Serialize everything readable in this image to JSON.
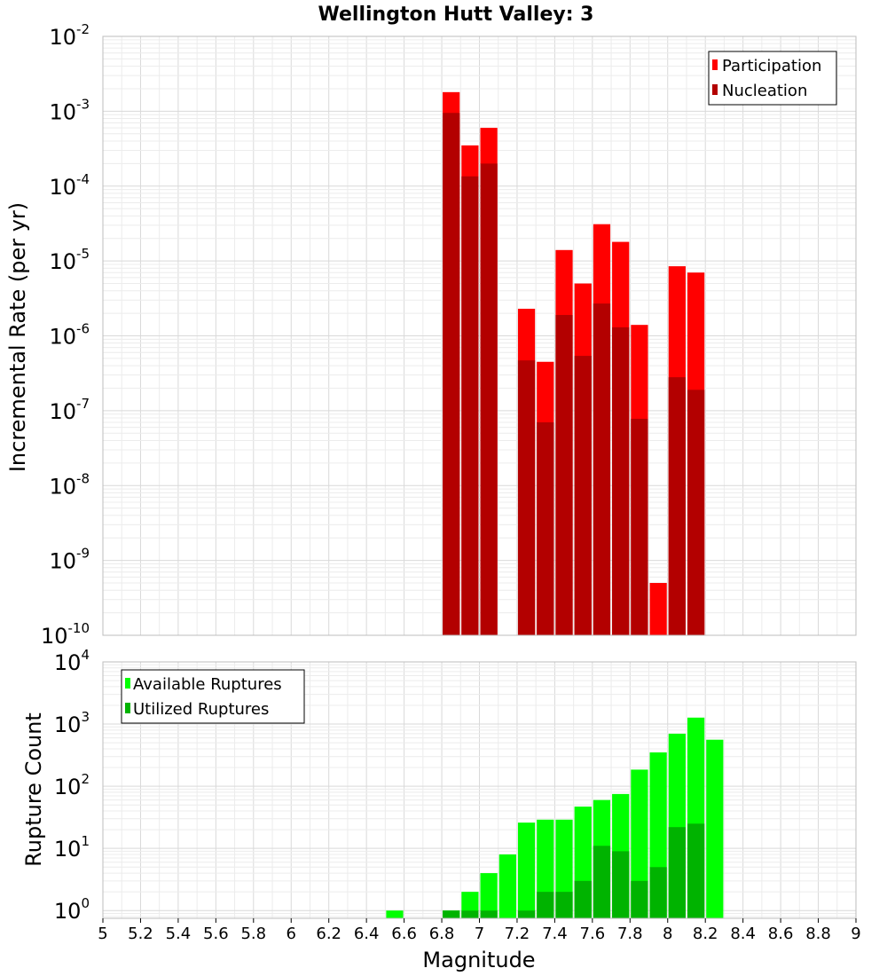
{
  "chart_data": [
    {
      "type": "bar",
      "title": "Wellington Hutt Valley: 3",
      "ylabel": "Incremental Rate (per yr)",
      "xlabel": "",
      "yscale": "log",
      "ylim": [
        1e-10,
        0.01
      ],
      "xlim": [
        5,
        9
      ],
      "bin_width": 0.1,
      "grid": true,
      "legend_position": "top-right",
      "y_ticks": [
        {
          "base": "10",
          "exp": "-10"
        },
        {
          "base": "10",
          "exp": "-9"
        },
        {
          "base": "10",
          "exp": "-8"
        },
        {
          "base": "10",
          "exp": "-7"
        },
        {
          "base": "10",
          "exp": "-6"
        },
        {
          "base": "10",
          "exp": "-5"
        },
        {
          "base": "10",
          "exp": "-4"
        },
        {
          "base": "10",
          "exp": "-3"
        },
        {
          "base": "10",
          "exp": "-2"
        }
      ],
      "series": [
        {
          "name": "Participation",
          "color": "#ff0000",
          "x": [
            6.85,
            6.95,
            7.05,
            7.25,
            7.35,
            7.45,
            7.55,
            7.65,
            7.75,
            7.85,
            7.95,
            8.05,
            8.15
          ],
          "values": [
            0.0018,
            0.00035,
            0.0006,
            2.3e-06,
            4.5e-07,
            1.4e-05,
            5e-06,
            3.1e-05,
            1.8e-05,
            1.4e-06,
            5e-10,
            8.5e-06,
            7e-06
          ]
        },
        {
          "name": "Nucleation",
          "color": "#b30000",
          "x": [
            6.85,
            6.95,
            7.05,
            7.25,
            7.35,
            7.45,
            7.55,
            7.65,
            7.75,
            7.85,
            8.05,
            8.15
          ],
          "values": [
            0.00095,
            0.000135,
            0.0002,
            4.7e-07,
            7e-08,
            1.9e-06,
            5.4e-07,
            2.7e-06,
            1.3e-06,
            7.8e-08,
            2.8e-07,
            1.9e-07
          ]
        }
      ]
    },
    {
      "type": "bar",
      "ylabel": "Rupture Count",
      "xlabel": "Magnitude",
      "yscale": "log",
      "ylim": [
        0.75,
        10000
      ],
      "xlim": [
        5,
        9
      ],
      "bin_width": 0.1,
      "grid": true,
      "legend_position": "top-left",
      "x_ticks": [
        "5",
        "5.2",
        "5.4",
        "5.6",
        "5.8",
        "6",
        "6.2",
        "6.4",
        "6.6",
        "6.8",
        "7",
        "7.2",
        "7.4",
        "7.6",
        "7.8",
        "8",
        "8.2",
        "8.4",
        "8.6",
        "8.8",
        "9"
      ],
      "y_ticks": [
        {
          "base": "10",
          "exp": "0"
        },
        {
          "base": "10",
          "exp": "1"
        },
        {
          "base": "10",
          "exp": "2"
        },
        {
          "base": "10",
          "exp": "3"
        },
        {
          "base": "10",
          "exp": "4"
        }
      ],
      "series": [
        {
          "name": "Available Ruptures",
          "color": "#00ff00",
          "x": [
            6.55,
            6.85,
            6.95,
            7.05,
            7.15,
            7.25,
            7.35,
            7.45,
            7.55,
            7.65,
            7.75,
            7.85,
            7.95,
            8.05,
            8.15,
            8.25
          ],
          "values": [
            1,
            1,
            2,
            4,
            8,
            26,
            29,
            29,
            47,
            60,
            75,
            185,
            350,
            700,
            1270,
            560
          ]
        },
        {
          "name": "Utilized Ruptures",
          "color": "#00b300",
          "x": [
            6.85,
            6.95,
            7.05,
            7.25,
            7.35,
            7.45,
            7.55,
            7.65,
            7.75,
            7.85,
            7.95,
            8.05,
            8.15
          ],
          "values": [
            1,
            1,
            1,
            1,
            2,
            2,
            3,
            11,
            9,
            3,
            5,
            22,
            25
          ]
        }
      ]
    }
  ]
}
